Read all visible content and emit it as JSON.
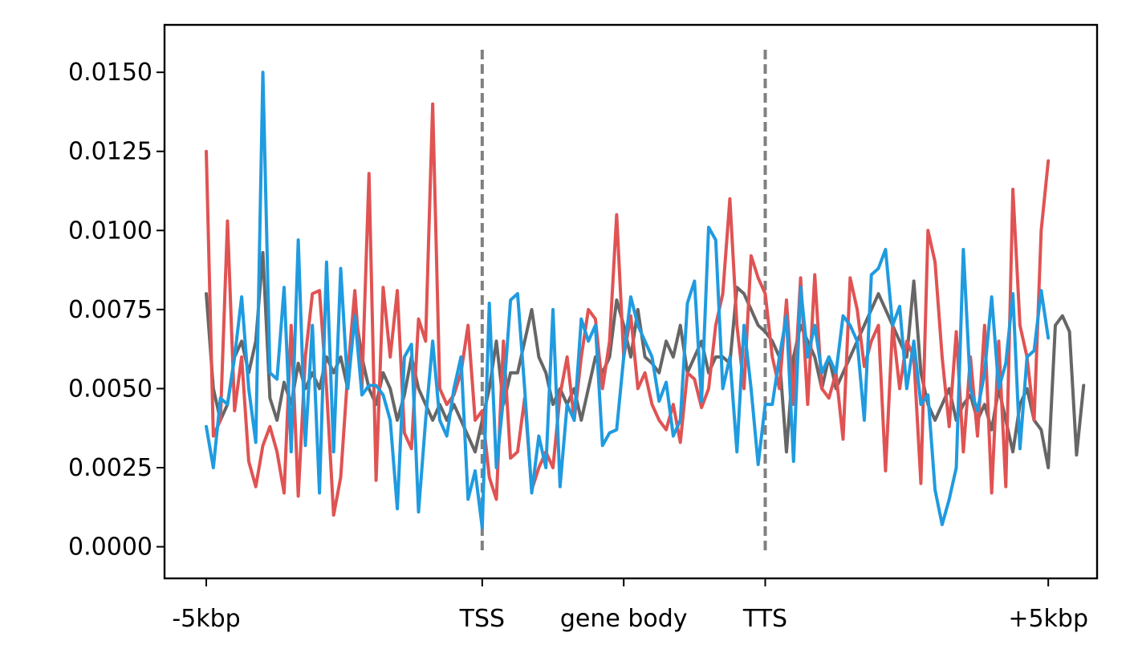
{
  "chart_data": {
    "type": "line",
    "title": "",
    "xlabel": "",
    "ylabel": "",
    "ylim": [
      -0.001,
      0.0165
    ],
    "yticks": [
      0.0,
      0.0025,
      0.005,
      0.0075,
      0.01,
      0.0125,
      0.015
    ],
    "ytick_labels": [
      "0.0000",
      "0.0025",
      "0.0050",
      "0.0075",
      "0.0100",
      "0.0125",
      "0.0150"
    ],
    "xlim": [
      -5.9,
      125.9
    ],
    "xticks": [
      0,
      39,
      59,
      79,
      119
    ],
    "xtick_labels": [
      "-5kbp",
      "TSS",
      "gene body",
      "TTS",
      "+5kbp"
    ],
    "vlines": [
      39,
      79
    ],
    "grid": false,
    "legend": "none",
    "series": [
      {
        "color": "#666666",
        "values": [
          0.008,
          0.005,
          0.004,
          0.0045,
          0.006,
          0.0065,
          0.0055,
          0.0065,
          0.0093,
          0.0047,
          0.004,
          0.0052,
          0.0045,
          0.0058,
          0.005,
          0.0055,
          0.005,
          0.006,
          0.0055,
          0.006,
          0.005,
          0.0075,
          0.006,
          0.005,
          0.0045,
          0.0055,
          0.005,
          0.004,
          0.0048,
          0.006,
          0.005,
          0.0045,
          0.004,
          0.0045,
          0.004,
          0.0045,
          0.004,
          0.0035,
          0.003,
          0.004,
          0.005,
          0.0065,
          0.0045,
          0.0055,
          0.0055,
          0.0065,
          0.0075,
          0.006,
          0.0055,
          0.0045,
          0.005,
          0.0045,
          0.005,
          0.004,
          0.005,
          0.006,
          0.0055,
          0.006,
          0.0078,
          0.007,
          0.006,
          0.0075,
          0.006,
          0.0058,
          0.0055,
          0.0065,
          0.006,
          0.007,
          0.0055,
          0.006,
          0.0065,
          0.0055,
          0.006,
          0.006,
          0.0058,
          0.0082,
          0.008,
          0.0075,
          0.007,
          0.0068,
          0.0065,
          0.006,
          0.003,
          0.006,
          0.007,
          0.0065,
          0.006,
          0.005,
          0.006,
          0.005,
          0.0055,
          0.006,
          0.0065,
          0.007,
          0.0075,
          0.008,
          0.0075,
          0.007,
          0.0065,
          0.006,
          0.0084,
          0.0055,
          0.0045,
          0.004,
          0.0045,
          0.005,
          0.004,
          0.0045,
          0.0048,
          0.004,
          0.0045,
          0.0037,
          0.005,
          0.004,
          0.003,
          0.0045,
          0.005,
          0.004,
          0.0037,
          0.0025,
          0.007,
          0.0073,
          0.0068,
          0.0029,
          0.0051
        ]
      },
      {
        "color": "#e05353",
        "values": [
          0.0125,
          0.0035,
          0.004,
          0.0103,
          0.0043,
          0.006,
          0.0027,
          0.0019,
          0.0032,
          0.0038,
          0.003,
          0.0017,
          0.007,
          0.0016,
          0.006,
          0.008,
          0.0081,
          0.005,
          0.001,
          0.0022,
          0.0055,
          0.0081,
          0.005,
          0.0118,
          0.0021,
          0.0082,
          0.006,
          0.0081,
          0.0036,
          0.0031,
          0.0072,
          0.0065,
          0.014,
          0.005,
          0.0045,
          0.0048,
          0.0055,
          0.007,
          0.004,
          0.0043,
          0.0022,
          0.0015,
          0.0065,
          0.0028,
          0.003,
          0.0047,
          0.0018,
          0.0025,
          0.003,
          0.0025,
          0.0048,
          0.006,
          0.004,
          0.006,
          0.0075,
          0.0072,
          0.005,
          0.0065,
          0.0105,
          0.006,
          0.0073,
          0.005,
          0.0055,
          0.0045,
          0.004,
          0.0037,
          0.0045,
          0.0033,
          0.0055,
          0.0053,
          0.0044,
          0.005,
          0.007,
          0.008,
          0.011,
          0.007,
          0.005,
          0.0092,
          0.0085,
          0.008,
          0.006,
          0.005,
          0.0078,
          0.0045,
          0.0085,
          0.0045,
          0.0086,
          0.005,
          0.0047,
          0.0055,
          0.0034,
          0.0085,
          0.0075,
          0.0057,
          0.0065,
          0.007,
          0.0024,
          0.007,
          0.005,
          0.0065,
          0.006,
          0.002,
          0.01,
          0.009,
          0.006,
          0.0038,
          0.0068,
          0.003,
          0.006,
          0.0035,
          0.007,
          0.0017,
          0.0065,
          0.0019,
          0.0113,
          0.007,
          0.006,
          0.004,
          0.01,
          0.0122
        ]
      },
      {
        "color": "#1f9be0",
        "values": [
          0.0038,
          0.0025,
          0.0047,
          0.0045,
          0.006,
          0.0079,
          0.005,
          0.0033,
          0.015,
          0.0055,
          0.0053,
          0.0082,
          0.003,
          0.0097,
          0.0032,
          0.007,
          0.0017,
          0.009,
          0.003,
          0.0088,
          0.005,
          0.0073,
          0.0048,
          0.0051,
          0.0051,
          0.0048,
          0.004,
          0.0012,
          0.006,
          0.0064,
          0.0011,
          0.004,
          0.0065,
          0.004,
          0.0035,
          0.005,
          0.006,
          0.0015,
          0.0024,
          0.0006,
          0.0077,
          0.0025,
          0.0047,
          0.0078,
          0.008,
          0.005,
          0.0017,
          0.0035,
          0.0025,
          0.0075,
          0.0019,
          0.0045,
          0.004,
          0.0072,
          0.0065,
          0.007,
          0.0032,
          0.0036,
          0.0037,
          0.006,
          0.0079,
          0.007,
          0.0065,
          0.006,
          0.0046,
          0.0052,
          0.0035,
          0.004,
          0.0077,
          0.0084,
          0.0046,
          0.0101,
          0.0097,
          0.005,
          0.006,
          0.003,
          0.007,
          0.005,
          0.0026,
          0.0045,
          0.0045,
          0.006,
          0.0073,
          0.0027,
          0.0082,
          0.006,
          0.007,
          0.0055,
          0.006,
          0.0055,
          0.0073,
          0.007,
          0.0065,
          0.004,
          0.0086,
          0.0088,
          0.0094,
          0.007,
          0.0076,
          0.005,
          0.0065,
          0.0045,
          0.0048,
          0.0018,
          0.0007,
          0.0015,
          0.0025,
          0.0094,
          0.005,
          0.0043,
          0.0055,
          0.0079,
          0.005,
          0.0058,
          0.008,
          0.0031,
          0.006,
          0.0062,
          0.0081,
          0.0066
        ]
      }
    ]
  }
}
